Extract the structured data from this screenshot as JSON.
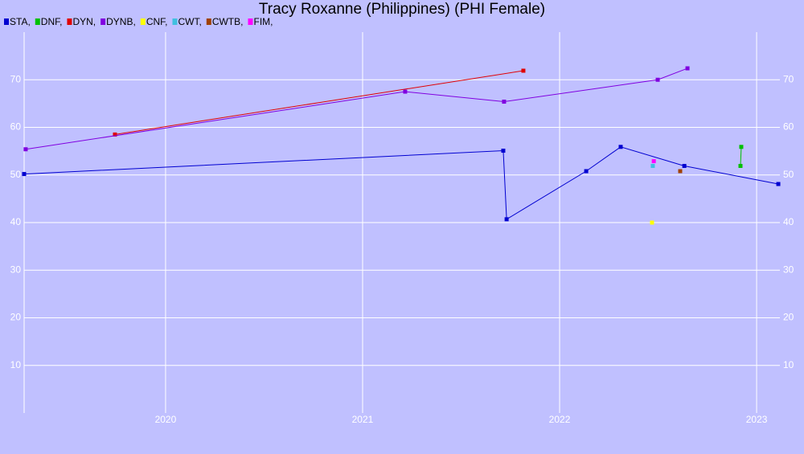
{
  "chart_data": {
    "type": "line",
    "title": "Tracy Roxanne (Philippines) (PHI Female)",
    "xlim": [
      2019.282,
      2023.118
    ],
    "xticks": [
      2020,
      2021,
      2022,
      2023
    ],
    "ylim": [
      0,
      80
    ],
    "yticks": [
      10,
      20,
      30,
      40,
      50,
      60,
      70
    ],
    "grid": true,
    "series": [
      {
        "name": "STA,",
        "color": "#0000d0",
        "x": [
          2019.282,
          2021.714,
          2021.731,
          2022.135,
          2022.31,
          2022.633,
          2023.11
        ],
        "values": [
          50.2,
          55.1,
          40.7,
          50.8,
          55.9,
          51.9,
          48.1
        ]
      },
      {
        "name": "DNF,",
        "color": "#00c000",
        "x": [
          2022.918,
          2022.922
        ],
        "values": [
          51.9,
          55.9
        ]
      },
      {
        "name": "DYN,",
        "color": "#e00000",
        "x": [
          2019.743,
          2021.816
        ],
        "values": [
          58.5,
          71.9
        ]
      },
      {
        "name": "DYNB,",
        "color": "#8000e0",
        "x": [
          2019.29,
          2021.216,
          2021.718,
          2022.498,
          2022.649
        ],
        "values": [
          55.4,
          67.5,
          65.4,
          70.0,
          72.4
        ]
      },
      {
        "name": "CNF,",
        "color": "#ffff00",
        "x": [
          2022.469
        ],
        "values": [
          40.0
        ]
      },
      {
        "name": "CWT,",
        "color": "#40c0e0",
        "x": [
          2022.473
        ],
        "values": [
          51.9
        ]
      },
      {
        "name": "CWTB,",
        "color": "#a04000",
        "x": [
          2022.612
        ],
        "values": [
          50.8
        ]
      },
      {
        "name": "FIM,",
        "color": "#ff00ff",
        "x": [
          2022.478
        ],
        "values": [
          52.9
        ]
      }
    ]
  }
}
